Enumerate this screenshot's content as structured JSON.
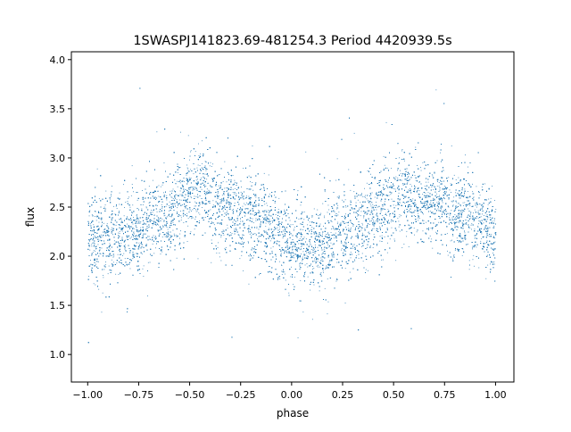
{
  "chart_data": {
    "type": "scatter",
    "title": "1SWASPJ141823.69-481254.3 Period 4420939.5s",
    "xlabel": "phase",
    "ylabel": "flux",
    "xlim": [
      -1.08,
      1.09
    ],
    "ylim": [
      0.72,
      4.08
    ],
    "xticks": [
      -1.0,
      -0.75,
      -0.5,
      -0.25,
      0.0,
      0.25,
      0.5,
      0.75,
      1.0
    ],
    "xtick_labels": [
      "−1.00",
      "−0.75",
      "−0.50",
      "−0.25",
      "0.00",
      "0.25",
      "0.50",
      "0.75",
      "1.00"
    ],
    "yticks": [
      1.0,
      1.5,
      2.0,
      2.5,
      3.0,
      3.5,
      4.0
    ],
    "ytick_labels": [
      "1.0",
      "1.5",
      "2.0",
      "2.5",
      "3.0",
      "3.5",
      "4.0"
    ],
    "grid": false,
    "legend": "none",
    "marker_color": "#1f77b4",
    "series": [
      {
        "x_range": [
          -1.0,
          1.0
        ],
        "trend": {
          "phase": [
            -1.0,
            -0.9,
            -0.8,
            -0.7,
            -0.6,
            -0.5,
            -0.45,
            -0.4,
            -0.3,
            -0.2,
            -0.1,
            0.0,
            0.1,
            0.2,
            0.3,
            0.4,
            0.5,
            0.55,
            0.6,
            0.7,
            0.8,
            0.9,
            1.0
          ],
          "flux": [
            2.2,
            2.15,
            2.25,
            2.35,
            2.45,
            2.65,
            2.7,
            2.55,
            2.5,
            2.4,
            2.25,
            2.15,
            2.05,
            2.2,
            2.3,
            2.4,
            2.6,
            2.7,
            2.55,
            2.55,
            2.45,
            2.35,
            2.2
          ]
        },
        "scatter_std": 0.22,
        "approx_points": 15000
      }
    ]
  }
}
